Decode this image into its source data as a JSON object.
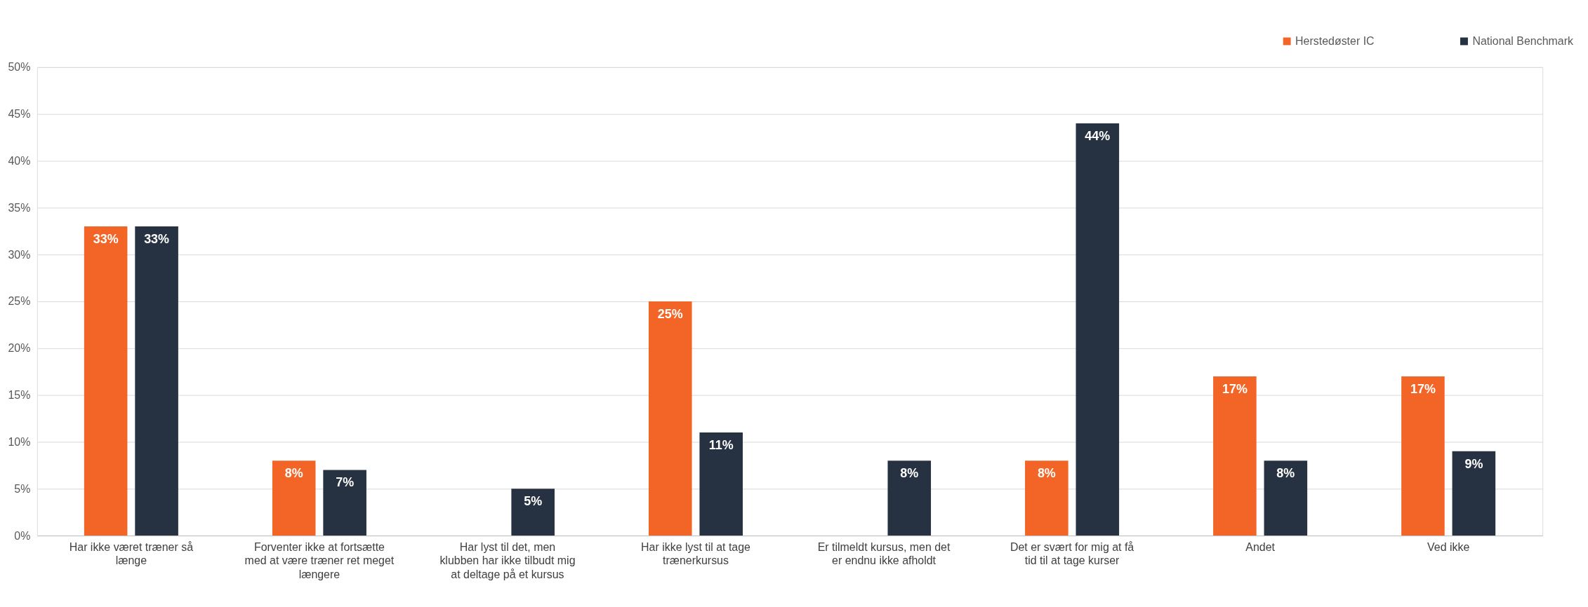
{
  "chart_data": {
    "type": "bar",
    "categories": [
      "Har ikke været træner så længe",
      "Forventer ikke at fortsætte med at være træner ret meget længere",
      "Har lyst til det, men klubben har ikke tilbudt mig at deltage på et kursus",
      "Har ikke lyst til at tage trænerkursus",
      "Er tilmeldt kursus, men det er endnu ikke afholdt",
      "Det er svært for mig at få tid til at tage kurser",
      "Andet",
      "Ved ikke"
    ],
    "series": [
      {
        "name": "Herstedøster IC",
        "color": "#f26526",
        "values": [
          33,
          8,
          null,
          25,
          null,
          8,
          17,
          17
        ],
        "value_labels": [
          "33%",
          "8%",
          null,
          "25%",
          null,
          "8%",
          "17%",
          "17%"
        ]
      },
      {
        "name": "National Benchmark",
        "color": "#263241",
        "values": [
          33,
          7,
          5,
          11,
          8,
          44,
          8,
          9
        ],
        "value_labels": [
          "33%",
          "7%",
          "5%",
          "11%",
          "8%",
          "44%",
          "8%",
          "9%"
        ]
      }
    ],
    "ylim": [
      0,
      50
    ],
    "yticks": [
      {
        "value": 0,
        "label": "0%"
      },
      {
        "value": 5,
        "label": "5%"
      },
      {
        "value": 10,
        "label": "10%"
      },
      {
        "value": 15,
        "label": "15%"
      },
      {
        "value": 20,
        "label": "20%"
      },
      {
        "value": 25,
        "label": "25%"
      },
      {
        "value": 30,
        "label": "30%"
      },
      {
        "value": 35,
        "label": "35%"
      },
      {
        "value": 40,
        "label": "40%"
      },
      {
        "value": 45,
        "label": "45%"
      },
      {
        "value": 50,
        "label": "50%"
      }
    ],
    "grid": "y",
    "legend": "top right"
  }
}
